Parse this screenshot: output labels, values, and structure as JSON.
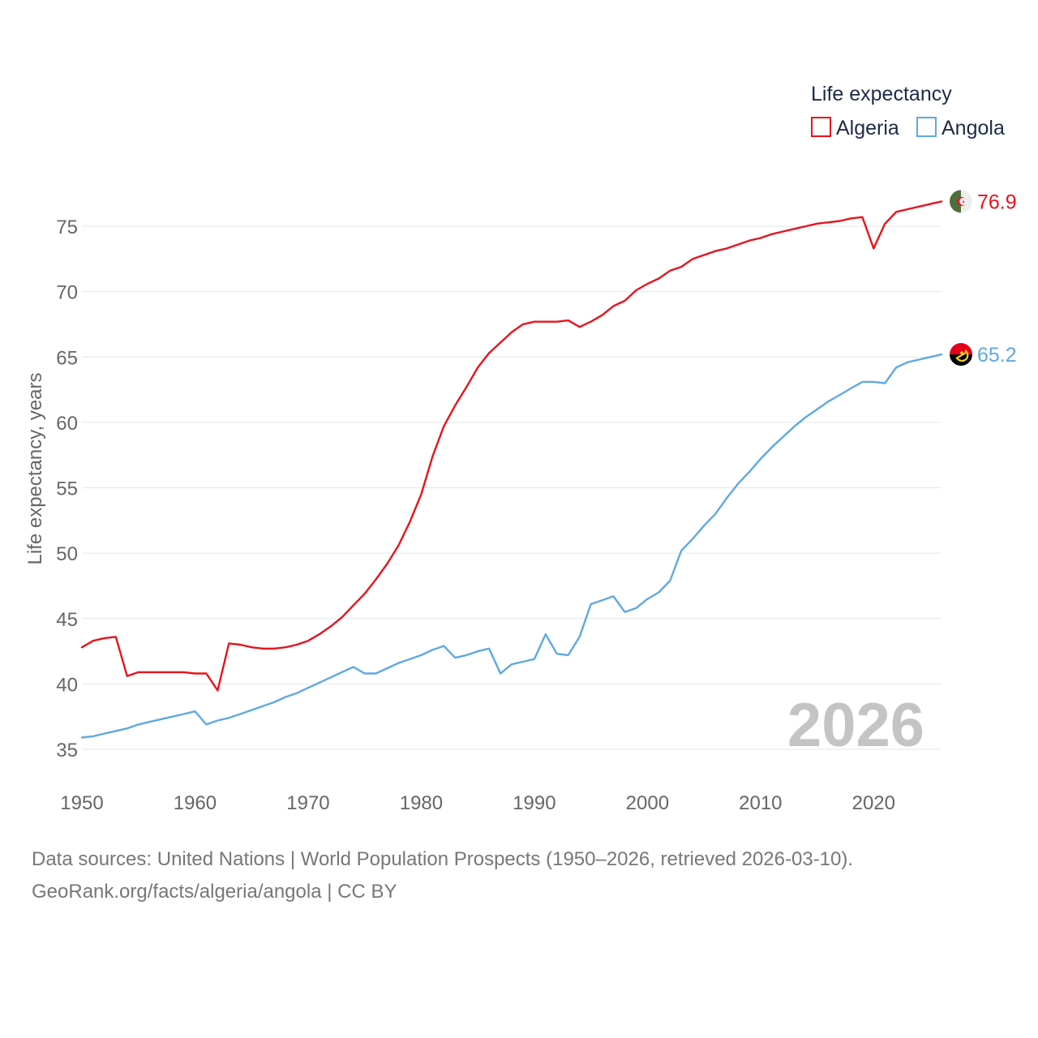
{
  "chart_data": {
    "type": "line",
    "xlabel": "",
    "ylabel": "Life expectancy, years",
    "xlim": [
      1950,
      2026
    ],
    "ylim": [
      33,
      78
    ],
    "x_ticks": [
      1950,
      1960,
      1970,
      1980,
      1990,
      2000,
      2010,
      2020
    ],
    "y_ticks": [
      35,
      40,
      45,
      50,
      55,
      60,
      65,
      70,
      75
    ],
    "grid": true,
    "legend": {
      "title": "Life expectancy",
      "placement": "top-right",
      "entries": [
        "Algeria",
        "Angola"
      ]
    },
    "year_label": "2026",
    "x_start": 1950,
    "series": [
      {
        "name": "Algeria",
        "color": "#e8131d",
        "end_label": "76.9",
        "flag_icon": "algeria-flag-icon",
        "values": [
          42.8,
          43.3,
          43.5,
          43.6,
          40.6,
          40.9,
          40.9,
          40.9,
          40.9,
          40.9,
          40.8,
          40.8,
          39.5,
          43.1,
          43.0,
          42.8,
          42.7,
          42.7,
          42.8,
          43.0,
          43.3,
          43.8,
          44.4,
          45.1,
          46.0,
          46.9,
          48.0,
          49.2,
          50.6,
          52.4,
          54.5,
          57.4,
          59.7,
          61.3,
          62.7,
          64.2,
          65.3,
          66.1,
          66.9,
          67.5,
          67.7,
          67.7,
          67.7,
          67.8,
          67.3,
          67.7,
          68.2,
          68.9,
          69.3,
          70.1,
          70.6,
          71.0,
          71.6,
          71.9,
          72.5,
          72.8,
          73.1,
          73.3,
          73.6,
          73.9,
          74.1,
          74.4,
          74.6,
          74.8,
          75.0,
          75.2,
          75.3,
          75.4,
          75.6,
          75.7,
          73.3,
          75.2,
          76.1,
          76.3,
          76.5,
          76.7,
          76.9
        ]
      },
      {
        "name": "Angola",
        "color": "#5fa8e3",
        "end_label": "65.2",
        "flag_icon": "angola-flag-icon",
        "values": [
          35.9,
          36.0,
          36.2,
          36.4,
          36.6,
          36.9,
          37.1,
          37.3,
          37.5,
          37.7,
          37.9,
          36.9,
          37.2,
          37.4,
          37.7,
          38.0,
          38.3,
          38.6,
          39.0,
          39.3,
          39.7,
          40.1,
          40.5,
          40.9,
          41.3,
          40.8,
          40.8,
          41.2,
          41.6,
          41.9,
          42.2,
          42.6,
          42.9,
          42.0,
          42.2,
          42.5,
          42.7,
          40.8,
          41.5,
          41.7,
          41.9,
          43.8,
          42.3,
          42.2,
          43.6,
          46.1,
          46.4,
          46.7,
          45.5,
          45.8,
          46.5,
          47.0,
          47.9,
          50.2,
          51.1,
          52.1,
          53.0,
          54.2,
          55.3,
          56.2,
          57.2,
          58.1,
          58.9,
          59.7,
          60.4,
          61.0,
          61.6,
          62.1,
          62.6,
          63.1,
          63.1,
          63.0,
          64.2,
          64.6,
          64.8,
          65.0,
          65.2
        ]
      }
    ]
  },
  "footer": {
    "line1": "Data sources: United Nations | World Population Prospects (1950–2026, retrieved 2026-03-10).",
    "line2": "GeoRank.org/facts/algeria/angola | CC BY"
  }
}
